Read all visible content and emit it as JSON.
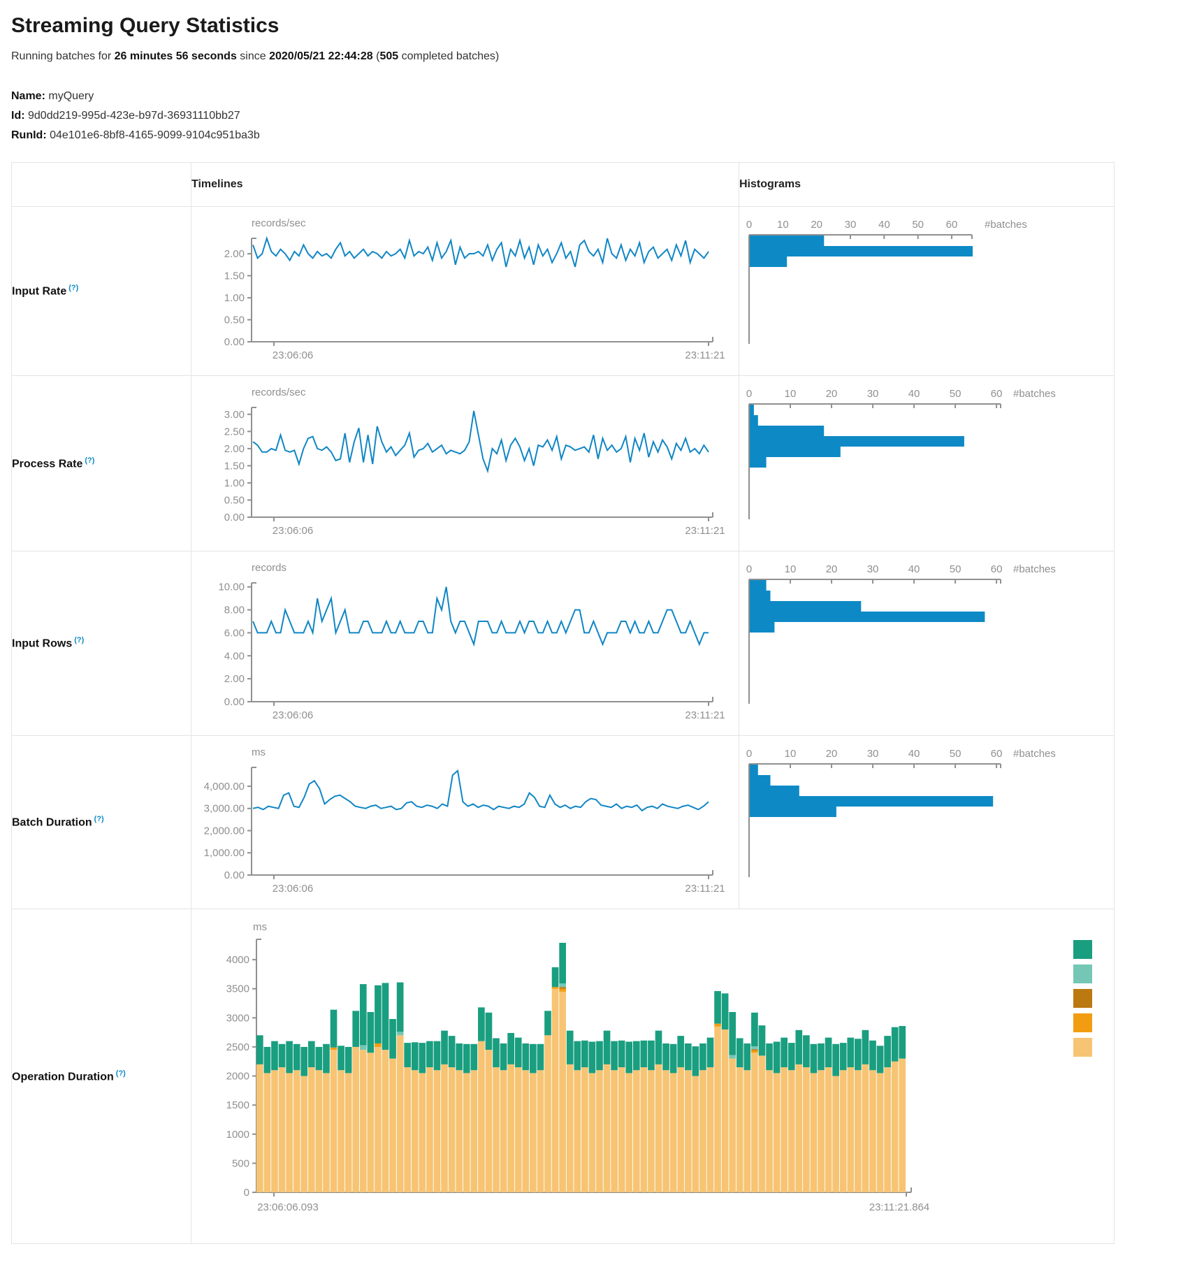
{
  "header": {
    "title": "Streaming Query Statistics",
    "running_prefix": "Running batches for ",
    "duration": "26 minutes 56 seconds",
    "since_word": " since ",
    "start_time": "2020/05/21 22:44:28",
    "paren_open": " (",
    "completed_batches": "505",
    "completed_suffix": " completed batches)"
  },
  "query_info": {
    "name_label": "Name:",
    "name": "myQuery",
    "id_label": "Id:",
    "id": "9d0dd219-995d-423e-b97d-36931110bb27",
    "runid_label": "RunId:",
    "runid": "04e101e6-8bf8-4165-9099-9104c951ba3b"
  },
  "table": {
    "col_timelines": "Timelines",
    "col_histograms": "Histograms",
    "rows": [
      {
        "label": "Input Rate",
        "help": "(?)"
      },
      {
        "label": "Process Rate",
        "help": "(?)"
      },
      {
        "label": "Input Rows",
        "help": "(?)"
      },
      {
        "label": "Batch Duration",
        "help": "(?)"
      },
      {
        "label": "Operation Duration",
        "help": "(?)"
      }
    ]
  },
  "colors": {
    "line_blue": "#1086c5",
    "bar_blue": "#0d8ac6",
    "axis_gray": "#909090",
    "label_gray": "#8f8f8f",
    "help_blue": "#0d8ac6"
  },
  "chart_data": [
    {
      "row": "input-rate",
      "timeline": {
        "type": "line",
        "title": "records/sec",
        "x_start": "23:06:06",
        "x_end": "23:11:21",
        "y_max": 2.35,
        "y_tick_values": [
          0,
          0.5,
          1,
          1.5,
          2
        ],
        "y_tick_labels": [
          "0.00",
          "0.50",
          "1.00",
          "1.50",
          "2.00"
        ],
        "values": [
          2.2,
          1.9,
          2.0,
          2.35,
          2.05,
          1.95,
          2.1,
          2.0,
          1.85,
          2.05,
          1.95,
          2.2,
          2.0,
          1.9,
          2.05,
          1.95,
          2.0,
          1.9,
          2.1,
          2.25,
          1.95,
          2.05,
          1.9,
          2.0,
          2.1,
          1.95,
          2.05,
          2.0,
          1.9,
          2.05,
          1.95,
          2.0,
          2.1,
          1.9,
          2.3,
          1.95,
          2.05,
          2.0,
          2.15,
          1.85,
          2.25,
          1.9,
          2.05,
          2.3,
          1.75,
          2.15,
          1.9,
          2.0,
          2.0,
          2.05,
          1.95,
          2.2,
          1.85,
          2.1,
          2.25,
          1.7,
          2.1,
          1.95,
          2.3,
          1.9,
          2.15,
          1.75,
          2.2,
          1.95,
          2.1,
          1.8,
          2.0,
          2.25,
          1.9,
          2.05,
          1.7,
          2.2,
          2.3,
          2.05,
          1.95,
          2.1,
          1.8,
          2.35,
          2.0,
          1.9,
          2.2,
          1.85,
          2.1,
          1.95,
          2.25,
          1.8,
          2.05,
          2.15,
          1.9,
          2.0,
          2.1,
          1.85,
          2.2,
          1.95,
          2.3,
          1.8,
          2.1,
          2.0,
          1.9,
          2.05
        ]
      },
      "histogram": {
        "type": "bar",
        "tick_values": [
          0,
          10,
          20,
          30,
          40,
          50,
          60
        ],
        "axis_max": 66,
        "axis_width": 319,
        "axis_label": "#batches",
        "values": [
          22,
          66,
          11
        ]
      }
    },
    {
      "row": "process-rate",
      "timeline": {
        "type": "line",
        "title": "records/sec",
        "x_start": "23:06:06",
        "x_end": "23:11:21",
        "y_max": 3.2,
        "y_tick_values": [
          0,
          0.5,
          1,
          1.5,
          2,
          2.5,
          3
        ],
        "y_tick_labels": [
          "0.00",
          "0.50",
          "1.00",
          "1.50",
          "2.00",
          "2.50",
          "3.00"
        ],
        "values": [
          2.2,
          2.1,
          1.9,
          1.9,
          2.0,
          1.95,
          2.4,
          1.95,
          1.9,
          1.95,
          1.55,
          2.0,
          2.3,
          2.35,
          2.0,
          1.95,
          2.05,
          1.9,
          1.65,
          1.7,
          2.45,
          1.6,
          2.2,
          2.6,
          1.6,
          2.4,
          1.55,
          2.65,
          2.2,
          1.9,
          2.05,
          1.8,
          1.95,
          2.1,
          2.45,
          1.75,
          1.95,
          2.0,
          2.15,
          1.9,
          2.0,
          2.1,
          1.85,
          1.95,
          1.9,
          1.85,
          1.95,
          2.2,
          3.1,
          2.4,
          1.7,
          1.35,
          2.0,
          1.85,
          2.25,
          1.65,
          2.1,
          2.3,
          2.05,
          1.65,
          2.0,
          1.5,
          2.1,
          2.05,
          2.25,
          1.95,
          2.35,
          1.7,
          2.1,
          2.05,
          1.95,
          2.0,
          2.05,
          1.9,
          2.4,
          1.7,
          2.3,
          1.95,
          2.1,
          1.9,
          2.0,
          2.35,
          1.6,
          2.3,
          1.95,
          2.45,
          1.75,
          2.2,
          1.9,
          2.25,
          2.05,
          1.7,
          2.15,
          1.95,
          2.3,
          1.9,
          2.0,
          1.85,
          2.1,
          1.9
        ]
      },
      "histogram": {
        "type": "bar",
        "tick_values": [
          0,
          10,
          20,
          30,
          40,
          50,
          60
        ],
        "axis_max": 61,
        "axis_width": 360,
        "axis_label": "#batches",
        "values": [
          1,
          2,
          18,
          52,
          22,
          4
        ]
      }
    },
    {
      "row": "input-rows",
      "timeline": {
        "type": "line",
        "title": "records",
        "x_start": "23:06:06",
        "x_end": "23:11:21",
        "y_max": 10.35,
        "y_tick_values": [
          0,
          2,
          4,
          6,
          8,
          10
        ],
        "y_tick_labels": [
          "0.00",
          "2.00",
          "4.00",
          "6.00",
          "8.00",
          "10.00"
        ],
        "values": [
          7,
          6,
          6,
          6,
          7,
          6,
          6,
          8,
          7,
          6,
          6,
          6,
          7,
          6,
          9,
          7,
          8,
          9,
          6,
          7,
          8,
          6,
          6,
          6,
          7,
          7,
          6,
          6,
          6,
          7,
          6,
          6,
          7,
          6,
          6,
          6,
          7,
          7,
          6,
          6,
          9,
          8,
          10,
          7,
          6,
          7,
          7,
          6,
          5,
          7,
          7,
          7,
          6,
          6,
          7,
          6,
          6,
          6,
          7,
          6,
          7,
          7,
          6,
          6,
          7,
          6,
          6,
          7,
          6,
          7,
          8,
          8,
          6,
          6,
          7,
          6,
          5,
          6,
          6,
          6,
          7,
          7,
          6,
          7,
          6,
          6,
          7,
          6,
          6,
          7,
          8,
          8,
          7,
          6,
          6,
          7,
          6,
          5,
          6,
          6
        ]
      },
      "histogram": {
        "type": "bar",
        "tick_values": [
          0,
          10,
          20,
          30,
          40,
          50,
          60
        ],
        "axis_max": 61,
        "axis_width": 360,
        "axis_label": "#batches",
        "values": [
          4,
          5,
          27,
          57,
          6
        ]
      }
    },
    {
      "row": "batch-duration",
      "timeline": {
        "type": "line",
        "title": "ms",
        "x_start": "23:06:06",
        "x_end": "23:11:21",
        "y_max": 4850,
        "y_tick_values": [
          0,
          1000,
          2000,
          3000,
          4000
        ],
        "y_tick_labels": [
          "0.00",
          "1,000.00",
          "2,000.00",
          "3,000.00",
          "4,000.00"
        ],
        "values": [
          3000,
          3050,
          2950,
          3100,
          3050,
          3000,
          3600,
          3700,
          3100,
          3050,
          3500,
          4100,
          4250,
          3900,
          3200,
          3400,
          3550,
          3600,
          3450,
          3300,
          3100,
          3050,
          3000,
          3100,
          3150,
          3000,
          3050,
          3100,
          2950,
          3000,
          3250,
          3300,
          3100,
          3050,
          3150,
          3100,
          3000,
          3200,
          3100,
          4500,
          4700,
          3300,
          3100,
          3200,
          3050,
          3150,
          3100,
          2950,
          3100,
          3050,
          3000,
          3100,
          3050,
          3200,
          3700,
          3500,
          3100,
          3050,
          3600,
          3200,
          3050,
          3150,
          3000,
          3100,
          3050,
          3300,
          3450,
          3400,
          3150,
          3100,
          3050,
          3200,
          3000,
          3100,
          3050,
          3150,
          2900,
          3050,
          3100,
          3000,
          3200,
          3100,
          3050,
          3000,
          3100,
          3150,
          3050,
          2950,
          3100,
          3300
        ]
      },
      "histogram": {
        "type": "bar",
        "tick_values": [
          0,
          10,
          20,
          30,
          40,
          50,
          60
        ],
        "axis_max": 61,
        "axis_width": 360,
        "axis_label": "#batches",
        "values": [
          2,
          5,
          12,
          59,
          21
        ]
      }
    },
    {
      "row": "operation-duration",
      "stacked": {
        "type": "stacked-bar",
        "title": "ms",
        "x_start": "23:06:06.093",
        "x_end": "23:11:21.864",
        "y_max": 4350,
        "y_tick_values": [
          0,
          500,
          1000,
          1500,
          2000,
          2500,
          3000,
          3500,
          4000
        ],
        "y_tick_labels": [
          "0",
          "500",
          "1000",
          "1500",
          "2000",
          "2500",
          "3000",
          "3500",
          "4000"
        ],
        "legend_colors": [
          "#1a9e80",
          "#74c7b4",
          "#bb7911",
          "#f29d11",
          "#f7c474"
        ],
        "stack_order_colors": [
          "#f7c474",
          "#f29d11",
          "#bb7911",
          "#74c7b4",
          "#1a9e80"
        ],
        "series": [
          {
            "name": "tan",
            "color": "#f7c474",
            "values": [
              2200,
              2050,
              2100,
              2150,
              2050,
              2100,
              2000,
              2150,
              2100,
              2050,
              2450,
              2100,
              2050,
              2500,
              2450,
              2400,
              2500,
              2450,
              2300,
              2700,
              2150,
              2100,
              2050,
              2150,
              2100,
              2200,
              2150,
              2100,
              2050,
              2100,
              2600,
              2450,
              2150,
              2100,
              2200,
              2150,
              2100,
              2050,
              2100,
              2700,
              3500,
              3450,
              2200,
              2100,
              2150,
              2050,
              2100,
              2200,
              2100,
              2150,
              2050,
              2100,
              2150,
              2100,
              2200,
              2100,
              2050,
              2150,
              2100,
              2000,
              2100,
              2150,
              2850,
              2800,
              2300,
              2150,
              2100,
              2400,
              2350,
              2100,
              2050,
              2150,
              2100,
              2200,
              2150,
              2050,
              2100,
              2150,
              2000,
              2100,
              2150,
              2100,
              2200,
              2100,
              2050,
              2150,
              2250,
              2300
            ]
          },
          {
            "name": "orange",
            "color": "#f29d11",
            "values": [
              0,
              0,
              0,
              0,
              0,
              0,
              0,
              0,
              0,
              0,
              40,
              0,
              0,
              0,
              0,
              0,
              60,
              0,
              0,
              0,
              0,
              0,
              0,
              0,
              0,
              0,
              0,
              0,
              0,
              0,
              0,
              0,
              0,
              0,
              0,
              0,
              0,
              0,
              0,
              0,
              30,
              50,
              0,
              0,
              0,
              0,
              0,
              0,
              0,
              0,
              0,
              0,
              0,
              0,
              0,
              0,
              0,
              0,
              0,
              0,
              0,
              0,
              50,
              0,
              0,
              0,
              0,
              40,
              0,
              0,
              0,
              0,
              0,
              0,
              0,
              0,
              0,
              0,
              0,
              0,
              0,
              0,
              0,
              0,
              0,
              0,
              0,
              0
            ]
          },
          {
            "name": "dark-ochre",
            "color": "#bb7911",
            "values": [
              0,
              0,
              0,
              0,
              0,
              0,
              0,
              0,
              0,
              0,
              0,
              0,
              0,
              0,
              0,
              0,
              0,
              0,
              0,
              0,
              0,
              0,
              0,
              0,
              0,
              0,
              0,
              0,
              0,
              0,
              0,
              0,
              0,
              0,
              0,
              0,
              0,
              0,
              0,
              0,
              0,
              30,
              0,
              0,
              0,
              0,
              0,
              0,
              0,
              0,
              0,
              0,
              0,
              0,
              0,
              0,
              0,
              0,
              0,
              0,
              0,
              0,
              0,
              0,
              0,
              0,
              0,
              20,
              0,
              0,
              0,
              0,
              0,
              0,
              0,
              0,
              0,
              0,
              0,
              0,
              0,
              0,
              0,
              0,
              0,
              0,
              0,
              0
            ]
          },
          {
            "name": "light-teal",
            "color": "#74c7b4",
            "values": [
              0,
              0,
              0,
              0,
              0,
              0,
              0,
              0,
              0,
              0,
              0,
              0,
              0,
              0,
              80,
              0,
              0,
              0,
              0,
              60,
              0,
              0,
              0,
              0,
              0,
              0,
              0,
              0,
              0,
              0,
              0,
              0,
              0,
              0,
              0,
              0,
              0,
              0,
              0,
              0,
              0,
              60,
              0,
              0,
              0,
              0,
              0,
              0,
              0,
              0,
              0,
              0,
              0,
              0,
              0,
              0,
              0,
              0,
              0,
              0,
              0,
              0,
              0,
              0,
              60,
              0,
              0,
              50,
              0,
              0,
              0,
              0,
              0,
              0,
              0,
              0,
              0,
              0,
              0,
              0,
              0,
              0,
              0,
              0,
              0,
              0,
              0,
              0
            ]
          },
          {
            "name": "teal",
            "color": "#1a9e80",
            "values": [
              500,
              450,
              500,
              400,
              550,
              450,
              500,
              450,
              400,
              500,
              650,
              420,
              450,
              620,
              1050,
              700,
              1000,
              1150,
              680,
              850,
              420,
              480,
              520,
              450,
              500,
              580,
              540,
              460,
              500,
              450,
              580,
              640,
              500,
              460,
              540,
              510,
              460,
              500,
              450,
              420,
              340,
              700,
              580,
              500,
              460,
              540,
              500,
              580,
              500,
              460,
              540,
              500,
              460,
              510,
              580,
              460,
              500,
              540,
              460,
              510,
              460,
              510,
              560,
              620,
              740,
              500,
              460,
              580,
              520,
              460,
              540,
              510,
              470,
              590,
              550,
              500,
              460,
              510,
              550,
              470,
              510,
              540,
              590,
              510,
              470,
              540,
              590,
              560
            ]
          }
        ]
      }
    }
  ]
}
